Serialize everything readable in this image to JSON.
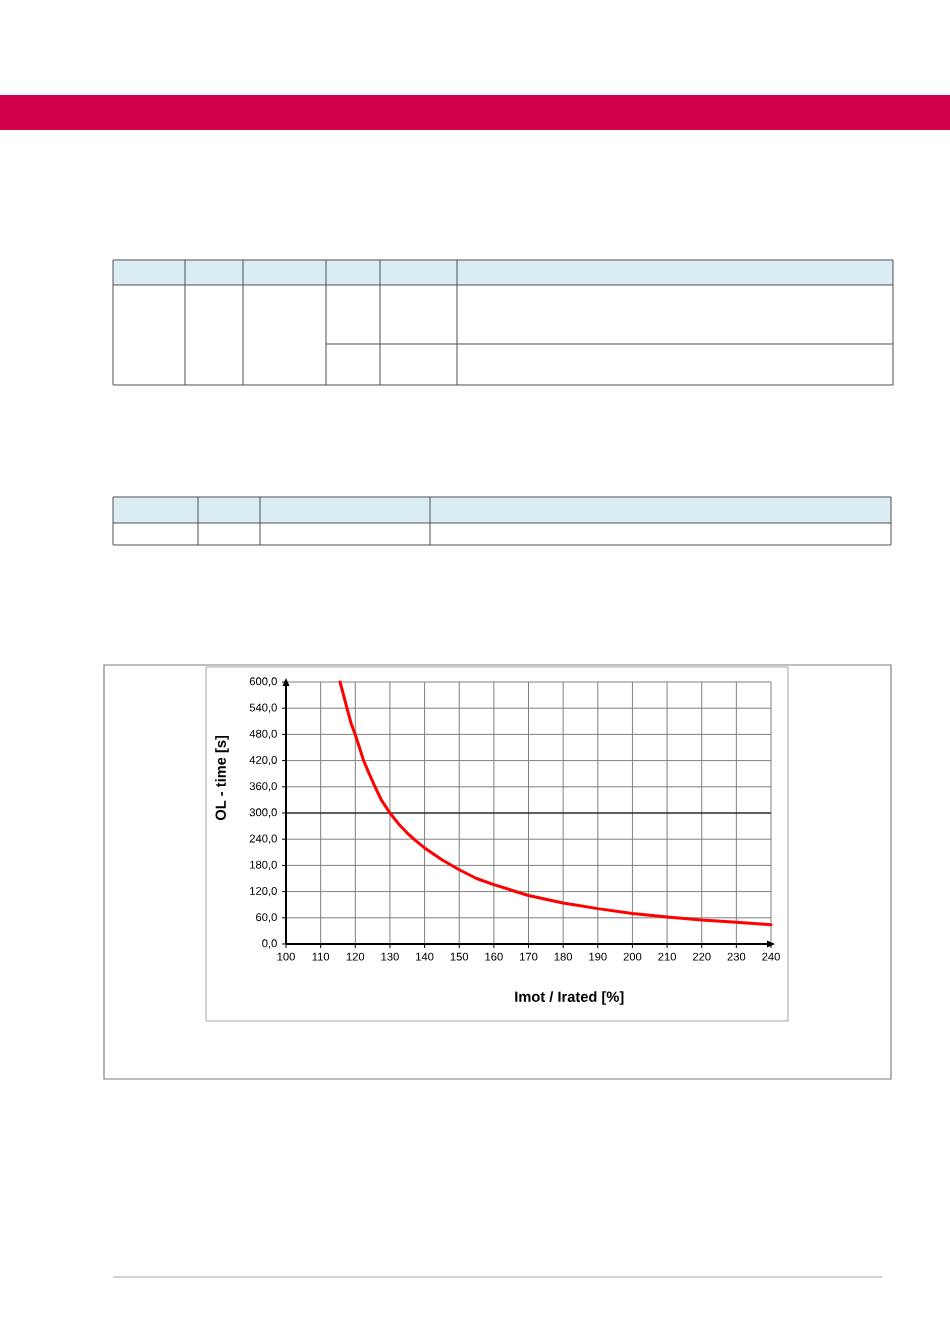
{
  "chart_data": {
    "type": "line",
    "xlabel": "Imot / Irated [%]",
    "ylabel": "OL - time [s]",
    "x": [
      115.6,
      116.6,
      117.6,
      118.8,
      120,
      121.2,
      122.4,
      124,
      125.7,
      127.5,
      130,
      132.5,
      135,
      137.5,
      140,
      145,
      150,
      155,
      160,
      170,
      180,
      190,
      200,
      210,
      220,
      230,
      240
    ],
    "series": [
      {
        "color": "#ff0000",
        "values": [
          600,
          570,
          540,
          505,
          479,
          450,
          420,
          390,
          360,
          330,
          300,
          275,
          254,
          236,
          220,
          193,
          170,
          150,
          136,
          111,
          94,
          81,
          70,
          62,
          55,
          50,
          44
        ]
      }
    ],
    "xlim": [
      100,
      240
    ],
    "ylim": [
      0,
      600
    ],
    "xticks": [
      100,
      110,
      120,
      130,
      140,
      150,
      160,
      170,
      180,
      190,
      200,
      210,
      220,
      230,
      240
    ],
    "yticks": [
      {
        "value": 0,
        "label": "0,0"
      },
      {
        "value": 60,
        "label": "60,0"
      },
      {
        "value": 120,
        "label": "120,0"
      },
      {
        "value": 180,
        "label": "180,0"
      },
      {
        "value": 240,
        "label": "240,0"
      },
      {
        "value": 300,
        "label": "300,0"
      },
      {
        "value": 360,
        "label": "360,0"
      },
      {
        "value": 420,
        "label": "420,0"
      },
      {
        "value": 480,
        "label": "480,0"
      },
      {
        "value": 540,
        "label": "540,0"
      },
      {
        "value": 600,
        "label": "600,0"
      }
    ],
    "grid": true,
    "line_style": "solid",
    "ref_lines": [
      {
        "axis": "y",
        "value": 300,
        "color": "#000000"
      }
    ]
  }
}
